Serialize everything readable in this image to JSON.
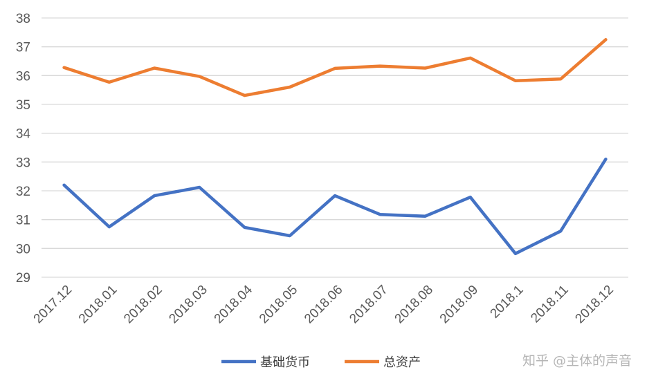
{
  "chart_data": {
    "type": "line",
    "categories": [
      "2017.12",
      "2018.01",
      "2018.02",
      "2018.03",
      "2018.04",
      "2018.05",
      "2018.06",
      "2018.07",
      "2018.08",
      "2018.09",
      "2018.1",
      "2018.11",
      "2018.12"
    ],
    "series": [
      {
        "name": "基础货币",
        "color": "#4472C4",
        "values": [
          32.2,
          30.75,
          31.83,
          32.12,
          30.73,
          30.44,
          31.83,
          31.18,
          31.12,
          31.78,
          29.82,
          30.6,
          33.1
        ]
      },
      {
        "name": "总资产",
        "color": "#ED7D31",
        "values": [
          36.28,
          35.77,
          36.26,
          35.97,
          35.31,
          35.6,
          36.25,
          36.33,
          36.26,
          36.61,
          35.82,
          35.88,
          37.25
        ]
      }
    ],
    "ylim": [
      29,
      38
    ],
    "yticks": [
      29,
      30,
      31,
      32,
      33,
      34,
      35,
      36,
      37,
      38
    ],
    "grid": true,
    "legend_position": "bottom"
  },
  "watermark": "知乎 @主体的声音"
}
